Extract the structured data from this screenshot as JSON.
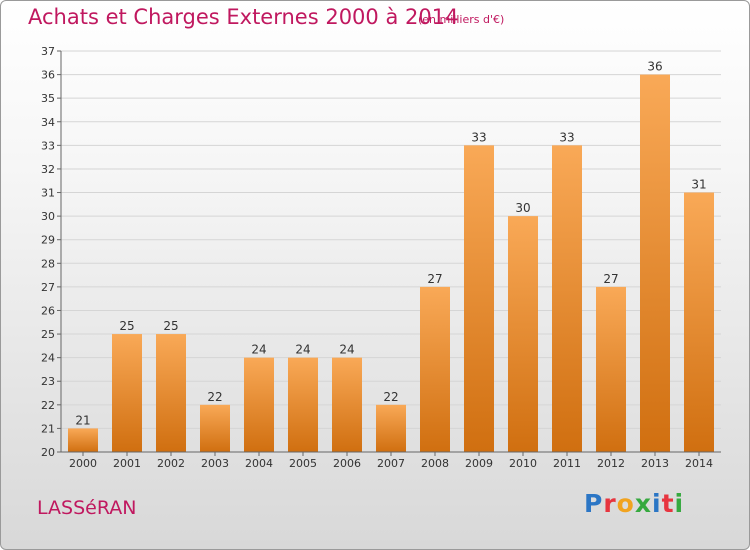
{
  "header": {
    "title": "Achats et Charges Externes 2000 à 2014",
    "subtitle": "(en milliers d'€)"
  },
  "footer": {
    "commune": "LASSéRAN",
    "logo_letters": [
      "P",
      "r",
      "o",
      "x",
      "i",
      "t",
      "i"
    ],
    "logo_colors": [
      "#2b76c5",
      "#e7353f",
      "#f1a31f",
      "#36a93f",
      "#2b76c5",
      "#e7353f",
      "#36a93f"
    ]
  },
  "colors": {
    "bar_top": "#f9a957",
    "bar_bottom": "#d06f10",
    "grid": "#d5d5d5",
    "axis_text": "#333333"
  },
  "chart_data": {
    "type": "bar",
    "title": "Achats et Charges Externes 2000 à 2014",
    "subtitle": "(en milliers d'€)",
    "categories": [
      "2000",
      "2001",
      "2002",
      "2003",
      "2004",
      "2005",
      "2006",
      "2007",
      "2008",
      "2009",
      "2010",
      "2011",
      "2012",
      "2013",
      "2014"
    ],
    "values": [
      21,
      25,
      25,
      22,
      24,
      24,
      24,
      22,
      27,
      33,
      30,
      33,
      27,
      36,
      31
    ],
    "ylim": [
      20,
      37
    ],
    "yticks": [
      20,
      21,
      22,
      23,
      24,
      25,
      26,
      27,
      28,
      29,
      30,
      31,
      32,
      33,
      34,
      35,
      36,
      37
    ],
    "ytick_labels": [
      "20",
      "21",
      "22",
      "23",
      "24",
      "25",
      "26",
      "27",
      "28",
      "29",
      "30",
      "31",
      "32",
      "33",
      "34",
      "35",
      "36",
      "37"
    ],
    "grid": true
  }
}
